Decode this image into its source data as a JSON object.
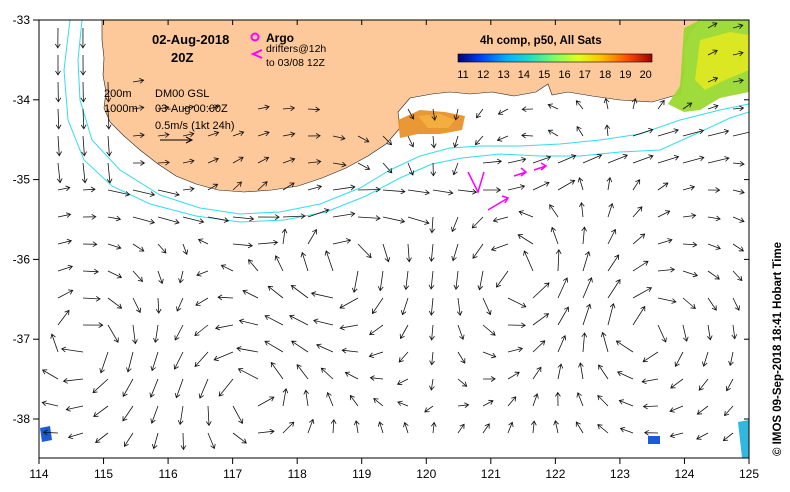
{
  "header": {
    "date": "02-Aug-2018",
    "hour": "20Z"
  },
  "argo": {
    "label": "Argo",
    "drifters": "drifters@12h",
    "drifters_range": "to 03/08 12Z",
    "symbol_color": "#ff00ff"
  },
  "legend_left": {
    "iso200": "200m",
    "iso1000": "1000m",
    "dm": "DM00 GSL",
    "timestamp": "03-Aug 00:00Z",
    "scale": "0.5m/s (1kt 24h)"
  },
  "colorbar": {
    "title": "4h comp, p50, All Sats",
    "ticks": [
      "11",
      "12",
      "13",
      "14",
      "15",
      "16",
      "17",
      "18",
      "19",
      "20"
    ]
  },
  "axes": {
    "x_ticks": [
      "114",
      "115",
      "116",
      "117",
      "118",
      "119",
      "120",
      "121",
      "122",
      "123",
      "124",
      "125"
    ],
    "y_ticks": [
      "-33",
      "-34",
      "-35",
      "-36",
      "-37",
      "-38"
    ]
  },
  "copyright": "© IMOS 09-Sep-2018 18:41 Hobart Time",
  "colors": {
    "land": "#fdc99a",
    "isobath": "#33ddee",
    "argo": "#ff00ff"
  }
}
